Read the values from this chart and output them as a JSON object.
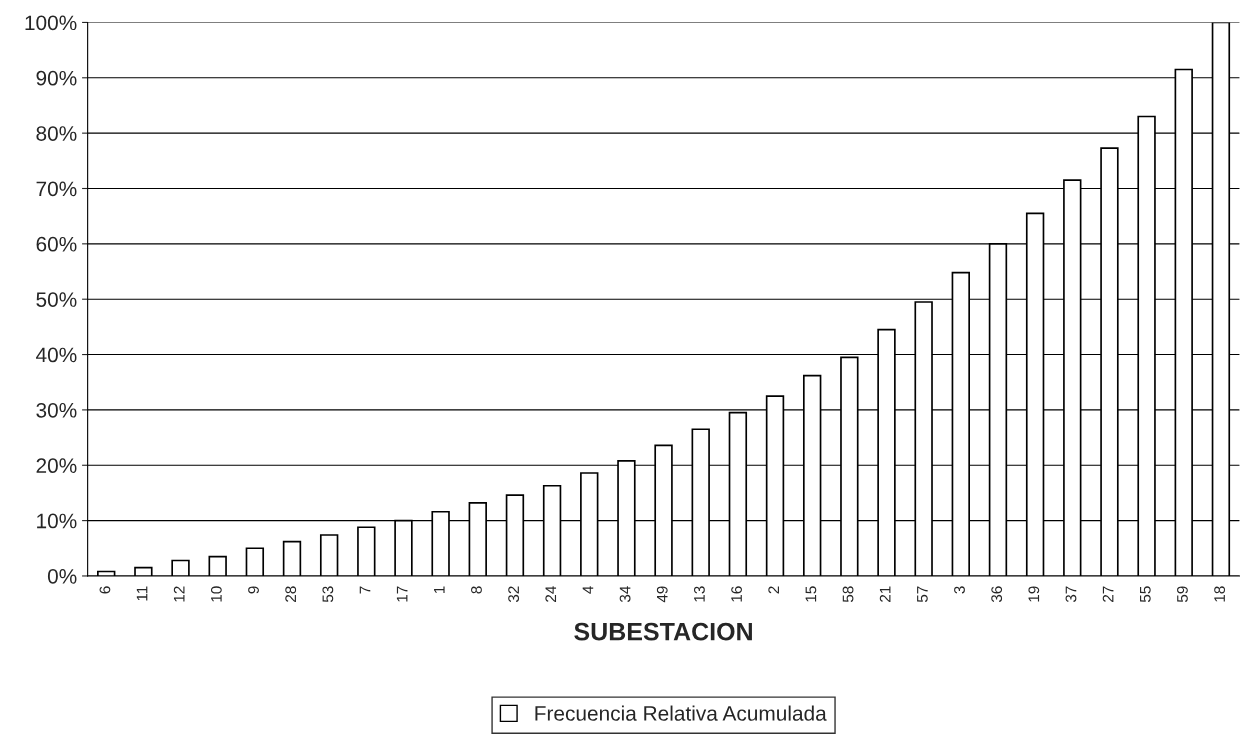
{
  "chart_data": {
    "type": "bar",
    "xlabel": "SUBESTACION",
    "categories": [
      "6",
      "11",
      "12",
      "10",
      "9",
      "28",
      "53",
      "7",
      "17",
      "1",
      "8",
      "32",
      "24",
      "4",
      "34",
      "49",
      "13",
      "16",
      "2",
      "15",
      "58",
      "21",
      "57",
      "3",
      "36",
      "19",
      "37",
      "27",
      "55",
      "59",
      "18"
    ],
    "series": [
      {
        "name": "Frecuencia Relativa Acumulada",
        "color": "#ffffff",
        "values": [
          0.8,
          1.5,
          2.8,
          3.5,
          5,
          6.2,
          7.4,
          8.8,
          10,
          11.6,
          13.2,
          14.6,
          16.3,
          18.6,
          20.8,
          23.6,
          26.5,
          29.5,
          32.5,
          36.2,
          39.5,
          44.5,
          49.5,
          54.8,
          60,
          65.5,
          71.5,
          77.3,
          83,
          91.5,
          100
        ]
      }
    ],
    "ylim": [
      0,
      100
    ],
    "yticks": [
      {
        "value": 0,
        "label": "0%"
      },
      {
        "value": 10,
        "label": "10%"
      },
      {
        "value": 20,
        "label": "20%"
      },
      {
        "value": 30,
        "label": "30%"
      },
      {
        "value": 40,
        "label": "40%"
      },
      {
        "value": 50,
        "label": "50%"
      },
      {
        "value": 60,
        "label": "60%"
      },
      {
        "value": 70,
        "label": "70%"
      },
      {
        "value": 80,
        "label": "80%"
      },
      {
        "value": 90,
        "label": "90%"
      },
      {
        "value": 100,
        "label": "100%"
      }
    ],
    "grid": "y",
    "legend": "bottom"
  }
}
